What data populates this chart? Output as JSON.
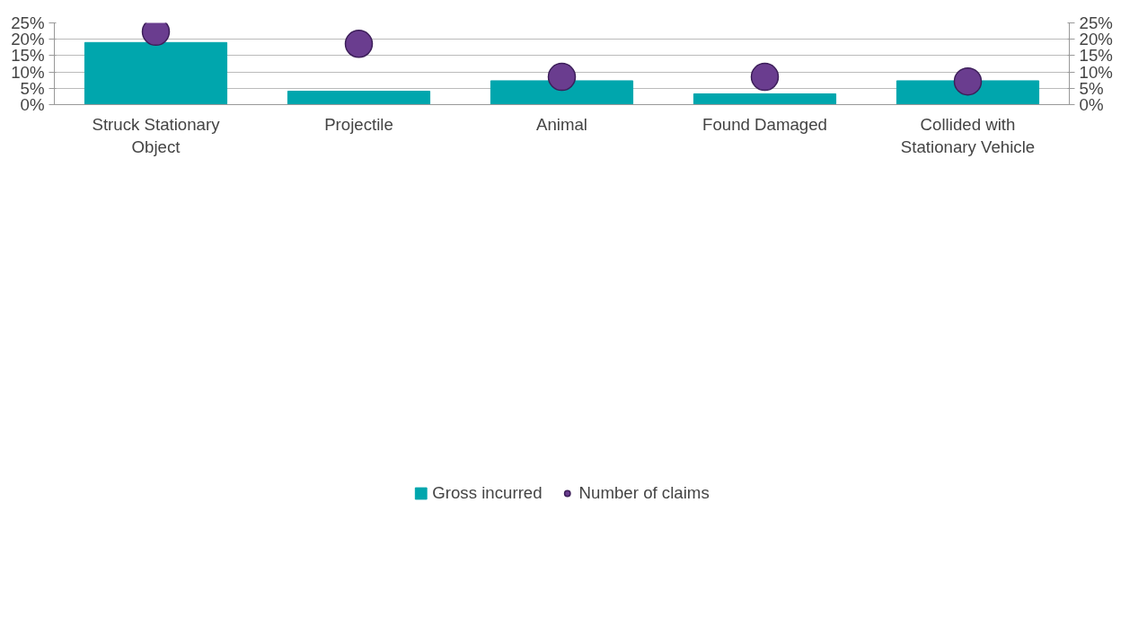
{
  "chart_data": {
    "type": "bar",
    "categories": [
      "Struck Stationary Object",
      "Projectile",
      "Animal",
      "Found Damaged",
      "Collided with Stationary Vehicle"
    ],
    "series": [
      {
        "name": "Gross incurred",
        "color": "#00a6ad",
        "values": [
          19.0,
          4.1,
          7.3,
          3.3,
          7.3
        ]
      },
      {
        "name": "Number of claims",
        "type": "scatter",
        "color": "#6a3d8f",
        "values": [
          22.3,
          18.6,
          8.5,
          8.5,
          7.1
        ]
      }
    ],
    "ylim": [
      0,
      25
    ],
    "yticks": [
      {
        "value": 0,
        "label": "0%"
      },
      {
        "value": 5,
        "label": "5%"
      },
      {
        "value": 10,
        "label": "10%"
      },
      {
        "value": 15,
        "label": "15%"
      },
      {
        "value": 20,
        "label": "20%"
      },
      {
        "value": 25,
        "label": "25%"
      }
    ],
    "y2lim": [
      0,
      25
    ],
    "y2ticks": [
      {
        "value": 0,
        "label": "0%"
      },
      {
        "value": 5,
        "label": "5%"
      },
      {
        "value": 10,
        "label": "10%"
      },
      {
        "value": 15,
        "label": "15%"
      },
      {
        "value": 20,
        "label": "20%"
      },
      {
        "value": 25,
        "label": "25%"
      }
    ],
    "grid": "y",
    "legend": "bottom",
    "marker": "circle"
  }
}
